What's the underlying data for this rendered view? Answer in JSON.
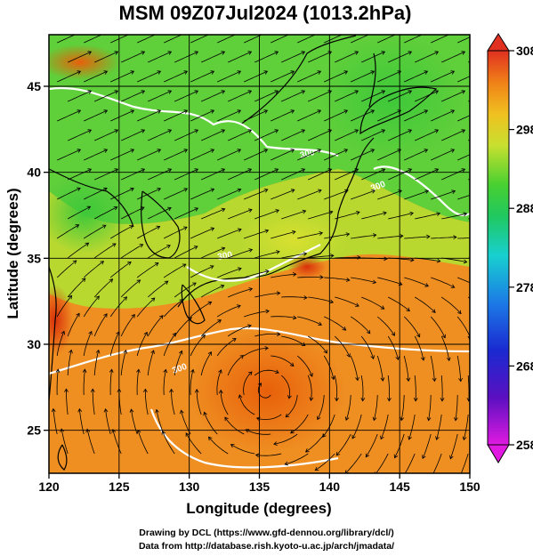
{
  "title": "MSM 09Z07Jul2024 (1013.2hPa)",
  "axes": {
    "xlabel": "Longitude (degrees)",
    "ylabel": "Latitude  (degrees)",
    "xlim": [
      120,
      150
    ],
    "ylim": [
      22.5,
      48
    ],
    "xticks": [
      "120",
      "125",
      "130",
      "135",
      "140",
      "145",
      "150"
    ],
    "yticks": [
      "25",
      "30",
      "35",
      "40",
      "45"
    ],
    "grid": true
  },
  "colorbar": {
    "min": 258,
    "max": 308,
    "ticks": [
      "308",
      "298",
      "288",
      "278",
      "268",
      "258"
    ],
    "tick_values": [
      308,
      298,
      288,
      278,
      268,
      258
    ],
    "palette": "magenta-blue-cyan-green-yellow-orange-red",
    "extend": "both"
  },
  "contour_labels": [
    "300",
    "300",
    "300",
    "300"
  ],
  "credits": {
    "line1": "Drawing by DCL (https://www.gfd-dennou.org/library/dcl/)",
    "line2": "Data from http://database.rish.kyoto-u.ac.jp/arch/jmadata/"
  }
}
